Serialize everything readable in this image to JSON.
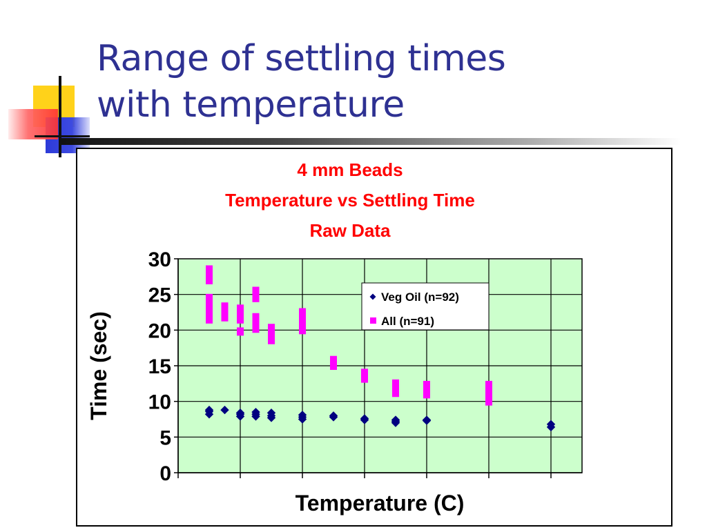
{
  "slide": {
    "title_line1": "Range of settling times",
    "title_line2": "with temperature"
  },
  "colors": {
    "title": "#2e3192",
    "chart_title": "#ff0000",
    "plot_bg": "#ccffcc",
    "veg_oil": "#000080",
    "all": "#ff00ff"
  },
  "chart_data": {
    "type": "scatter",
    "title": [
      "4 mm Beads",
      "Temperature vs Settling Time",
      "Raw Data"
    ],
    "xlabel": "Temperature (C)",
    "ylabel": "Time (sec)",
    "ylim": [
      0,
      30
    ],
    "yticks": [
      0,
      5,
      10,
      15,
      20,
      25,
      30
    ],
    "xlim": [
      0,
      13
    ],
    "xticks": [
      0,
      2,
      4,
      6,
      8,
      10,
      12
    ],
    "grid": true,
    "legend_position": "top-right",
    "series": [
      {
        "name": "Veg Oil (n=92)",
        "marker": "diamond",
        "color": "#000080",
        "x": [
          1,
          1,
          1,
          1.5,
          2,
          2,
          2,
          2.5,
          2.5,
          2.5,
          3,
          3,
          3,
          4,
          4,
          4,
          5,
          5,
          6,
          6,
          7,
          7,
          7,
          8,
          8,
          12,
          12
        ],
        "y": [
          8.2,
          8.6,
          8.8,
          8.8,
          7.9,
          8.2,
          8.4,
          7.9,
          8.2,
          8.5,
          7.7,
          8.0,
          8.4,
          7.5,
          7.8,
          8.1,
          7.8,
          8.0,
          7.4,
          7.6,
          7.0,
          7.2,
          7.4,
          7.3,
          7.4,
          6.4,
          6.8
        ]
      },
      {
        "name": "All (n=91)",
        "marker": "square",
        "color": "#ff00ff",
        "x": [
          1,
          1,
          1,
          1,
          1,
          1,
          1,
          1.5,
          1.5,
          1.5,
          2,
          2,
          2,
          2,
          2.5,
          2.5,
          2.5,
          2.5,
          2.5,
          3,
          3,
          3,
          3,
          4,
          4,
          4,
          4,
          5,
          5,
          6,
          6,
          7,
          7,
          7,
          8,
          8,
          8,
          10,
          10,
          10,
          10
        ],
        "y": [
          21.5,
          22.5,
          23.5,
          24.5,
          27,
          28,
          28.5,
          21.8,
          22.5,
          23.3,
          19.8,
          21.5,
          22.5,
          23,
          20.2,
          21,
          21.8,
          24.5,
          25.5,
          18.6,
          19.2,
          19.8,
          20.3,
          20,
          21,
          22,
          22.5,
          15,
          15.8,
          13.2,
          14,
          11.2,
          12,
          12.5,
          11,
          11.7,
          12.3,
          10,
          11,
          11.8,
          12.3
        ]
      }
    ]
  }
}
